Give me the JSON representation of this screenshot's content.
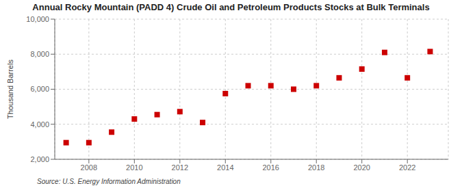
{
  "chart_data": {
    "type": "scatter",
    "title": "Annual Rocky Mountain (PADD 4) Crude Oil and Petroleum Products Stocks at Bulk Terminals",
    "y_label": "Thousand Barrels",
    "annotations": [
      "Source: U.S. Energy Information Administration"
    ],
    "x": [
      2007,
      2008,
      2009,
      2010,
      2011,
      2012,
      2013,
      2014,
      2015,
      2016,
      2017,
      2018,
      2019,
      2020,
      2021,
      2022,
      2023
    ],
    "values": [
      2950,
      2950,
      3550,
      4300,
      4550,
      4720,
      4100,
      5750,
      6200,
      6200,
      6000,
      6200,
      6650,
      7150,
      8100,
      6650,
      8150
    ],
    "color": "#cc0000",
    "marker": "square",
    "xlim": [
      2006.5,
      2023.8
    ],
    "xticks": [
      2008,
      2010,
      2012,
      2014,
      2016,
      2018,
      2020,
      2022
    ],
    "ylim": [
      2000,
      10000
    ],
    "yticks": [
      {
        "value": 2000,
        "label": "2,000"
      },
      {
        "value": 4000,
        "label": "4,000"
      },
      {
        "value": 6000,
        "label": "6,000"
      },
      {
        "value": 8000,
        "label": "8,000"
      },
      {
        "value": 10000,
        "label": "10,000"
      }
    ],
    "grid": true
  }
}
